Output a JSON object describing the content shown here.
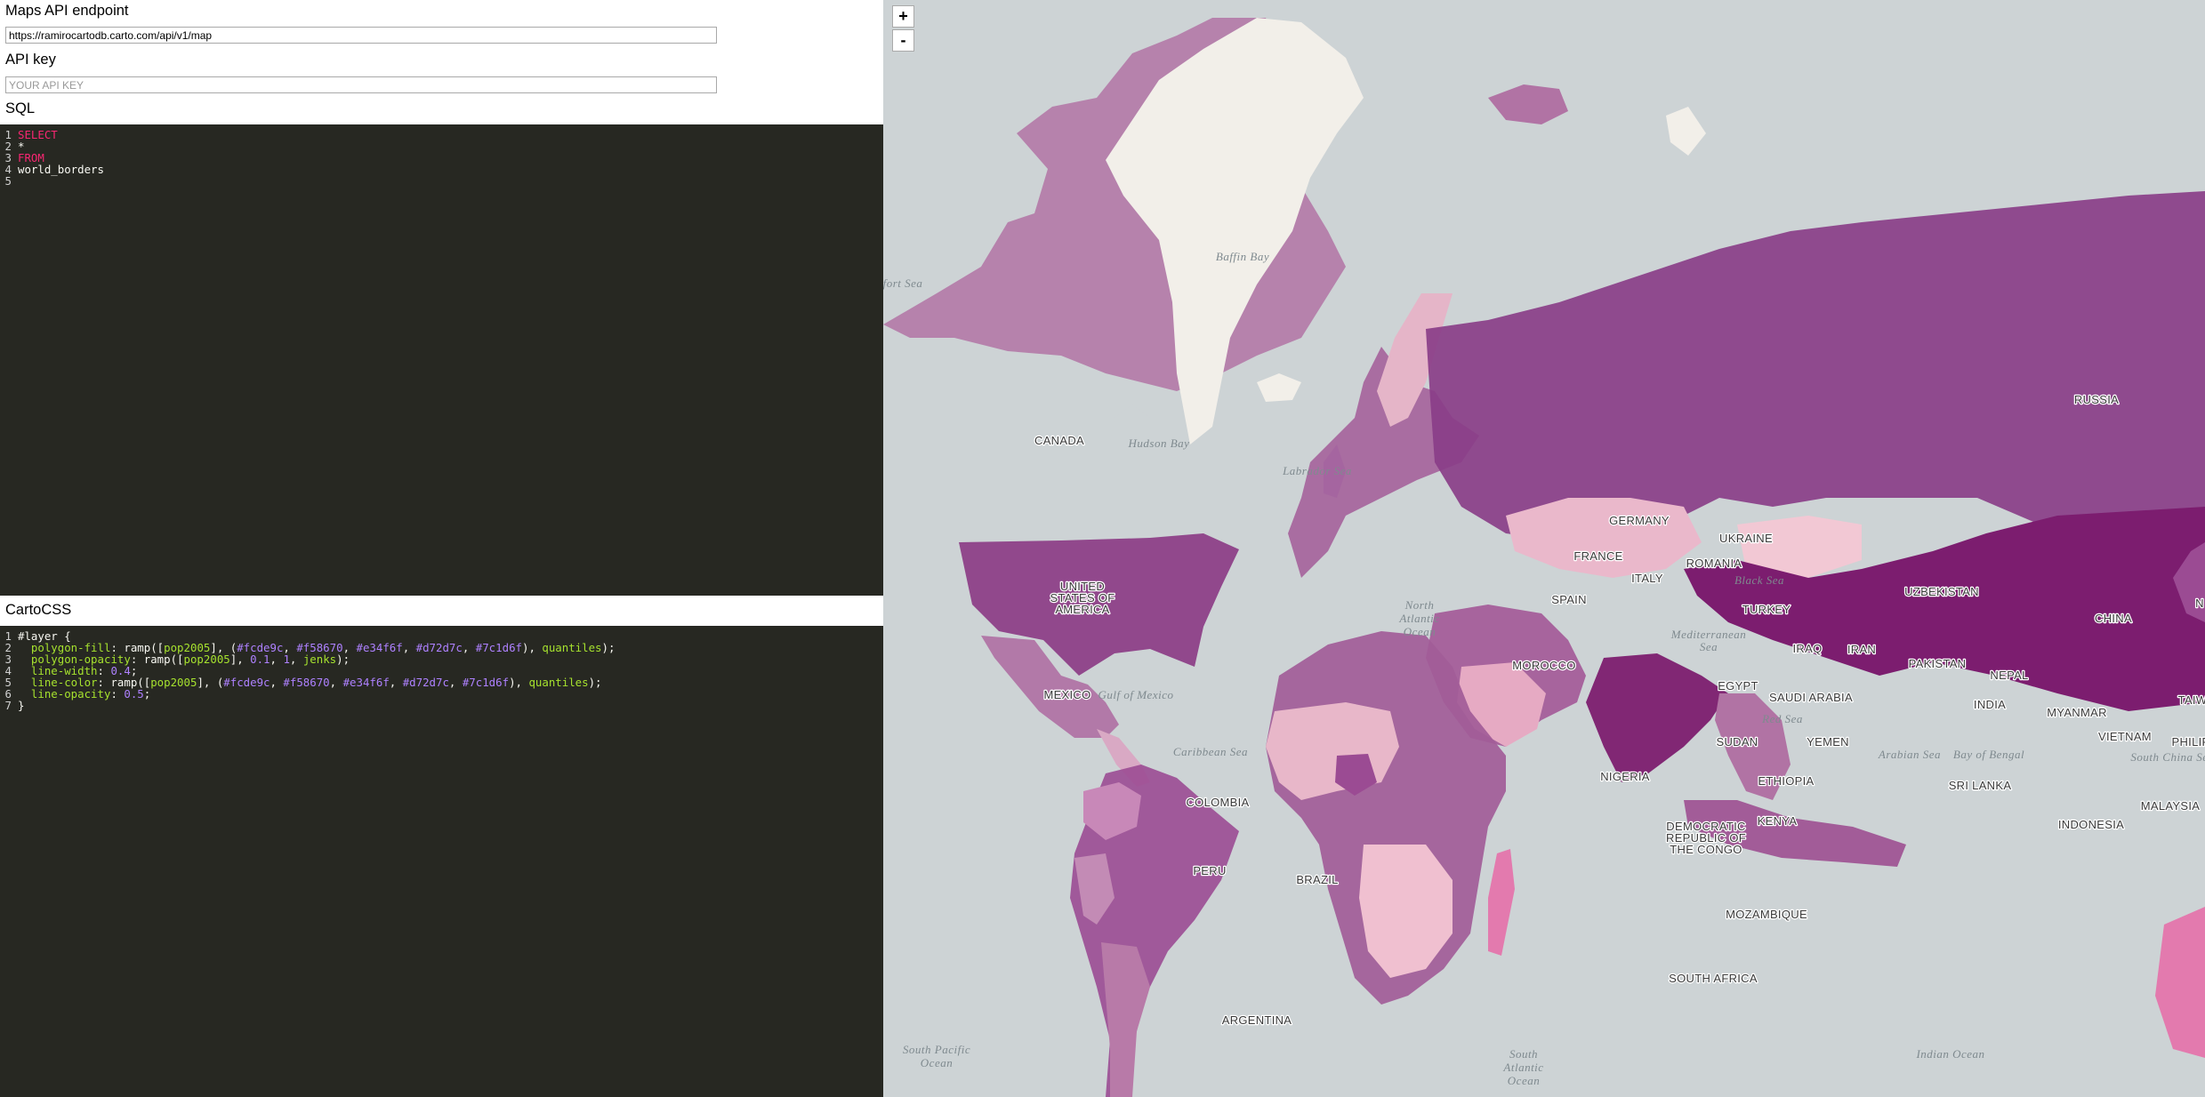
{
  "endpoint": {
    "label": "Maps API endpoint",
    "value": "https://ramirocartodb.carto.com/api/v1/map"
  },
  "apikey": {
    "label": "API key",
    "placeholder": "YOUR API KEY"
  },
  "sql": {
    "label": "SQL",
    "lines": [
      {
        "num": "1",
        "text": "SELECT"
      },
      {
        "num": "2",
        "text": "*"
      },
      {
        "num": "3",
        "text": "FROM"
      },
      {
        "num": "4",
        "text": "world_borders"
      },
      {
        "num": "5",
        "text": ""
      }
    ]
  },
  "cartocss": {
    "label": "CartoCSS",
    "nums": [
      "1",
      "2",
      "3",
      "4",
      "5",
      "6",
      "7"
    ],
    "l1": "#layer {",
    "l2": {
      "prop": "polygon-fill",
      "sep": ": ",
      "fn": "ramp",
      "open": "([",
      "field": "pop2005",
      "mid": "], (",
      "c1": "#fcde9c",
      "c2": "#f58670",
      "c3": "#e34f6f",
      "c4": "#d72d7c",
      "c5": "#7c1d6f",
      "close": "), ",
      "method": "quantiles",
      "end": ");",
      "comma": ", "
    },
    "l3": {
      "prop": "polygon-opacity",
      "sep": ": ",
      "fn": "ramp",
      "open": "([",
      "field": "pop2005",
      "mid": "], ",
      "a": "0.1",
      "b": "1",
      "method": "jenks",
      "end": ");",
      "comma": ", "
    },
    "l4": {
      "prop": "line-width",
      "sep": ": ",
      "val": "0.4",
      "end": ";"
    },
    "l5": {
      "prop": "line-color",
      "sep": ": ",
      "fn": "ramp",
      "open": "([",
      "field": "pop2005",
      "mid": "], (",
      "c1": "#fcde9c",
      "c2": "#f58670",
      "c3": "#e34f6f",
      "c4": "#d72d7c",
      "c5": "#7c1d6f",
      "close": "), ",
      "method": "quantiles",
      "end": ");",
      "comma": ", "
    },
    "l6": {
      "prop": "line-opacity",
      "sep": ": ",
      "val": "0.5",
      "end": ";"
    },
    "l7": "}"
  },
  "zoom": {
    "in": "+",
    "out": "-"
  },
  "map": {
    "countries": {
      "canada": "CANADA",
      "usa1": "UNITED",
      "usa2": "STATES OF",
      "usa3": "AMERICA",
      "mexico": "MEXICO",
      "colombia": "COLOMBIA",
      "peru": "PERU",
      "brazil": "BRAZIL",
      "argentina": "ARGENTINA",
      "germany": "GERMANY",
      "france": "FRANCE",
      "spain": "SPAIN",
      "italy": "ITALY",
      "ukraine": "UKRAINE",
      "romania": "ROMANIA",
      "turkey": "TURKEY",
      "morocco": "MOROCCO",
      "egypt": "EGYPT",
      "saudi": "SAUDI ARABIA",
      "iraq": "IRAQ",
      "iran": "IRAN",
      "sudan": "SUDAN",
      "yemen": "YEMEN",
      "ethiopia": "ETHIOPIA",
      "nigeria": "NIGERIA",
      "kenya": "KENYA",
      "drc1": "DEMOCRATIC",
      "drc2": "REPUBLIC OF",
      "drc3": "THE CONGO",
      "mozambique": "MOZAMBIQUE",
      "southafrica": "SOUTH AFRICA",
      "russia": "RUSSIA",
      "uzbekistan": "UZBEKISTAN",
      "pakistan": "PAKISTAN",
      "china": "CHINA",
      "nepal": "NEPAL",
      "india": "INDIA",
      "srilanka": "SRI LANKA",
      "myanmar": "MYANMAR",
      "vietnam": "VIETNAM",
      "malaysia": "MALAYSIA",
      "indonesia": "INDONESIA",
      "philippines": "PHILIP",
      "taiwan": "TAIW",
      "korea": "N"
    },
    "water": {
      "baffin": "Baffin Bay",
      "beaufort": "fort Sea",
      "hudson": "Hudson Bay",
      "labrador": "Labrador Sea",
      "northatl1": "North",
      "northatl2": "Atlantic",
      "northatl3": "Ocean",
      "gulfmexico": "Gulf of Mexico",
      "caribbean": "Caribbean Sea",
      "med1": "Mediterranean",
      "med2": "Sea",
      "blacksea": "Black Sea",
      "redsea": "Red Sea",
      "arabiansea": "Arabian Sea",
      "bengal": "Bay of Bengal",
      "southchina": "South China Se",
      "southpac1": "South Pacific",
      "southpac2": "Ocean",
      "southatl1": "South",
      "southatl2": "Atlantic",
      "southatl3": "Ocean",
      "indian": "Indian Ocean"
    }
  }
}
